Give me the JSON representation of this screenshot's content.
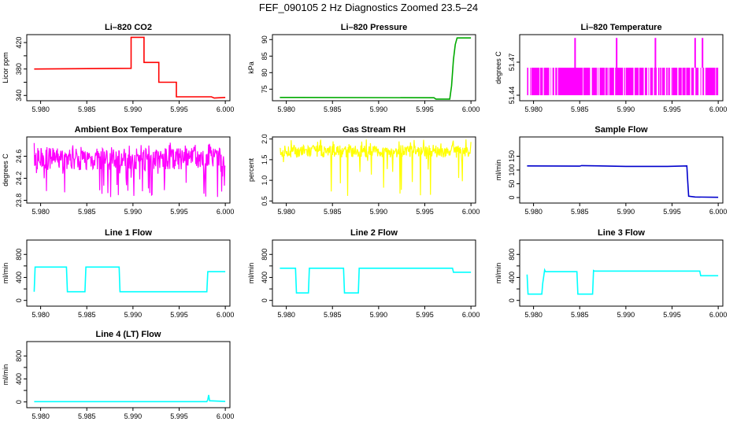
{
  "title": "FEF_090105  2 Hz Diagnostics Zoomed 23.5–24",
  "chart_data": [
    {
      "type": "line",
      "title": "Li–820 CO2",
      "ylabel": "Licor ppm",
      "xlim": [
        5.9785,
        6.0005
      ],
      "ylim": [
        332,
        432
      ],
      "yticks": [
        340,
        360,
        380,
        400,
        420
      ],
      "ytick_labels": [
        "340",
        "",
        "380",
        "",
        "420"
      ],
      "xticks": [
        5.98,
        5.985,
        5.99,
        5.995,
        6.0
      ],
      "xtick_labels": [
        "5.980",
        "5.985",
        "5.990",
        "5.995",
        "6.000"
      ],
      "color": "#ff0000",
      "series": [
        {
          "values": [
            [
              5.9793,
              380
            ],
            [
              5.9898,
              381
            ],
            [
              5.9898,
              428
            ],
            [
              5.9912,
              428
            ],
            [
              5.9912,
              390
            ],
            [
              5.9928,
              390
            ],
            [
              5.9928,
              360
            ],
            [
              5.9947,
              360
            ],
            [
              5.9947,
              338
            ],
            [
              5.9985,
              338
            ],
            [
              5.9988,
              336
            ],
            [
              6.0,
              337
            ]
          ]
        }
      ]
    },
    {
      "type": "line",
      "title": "Li–820 Pressure",
      "ylabel": "kPa",
      "xlim": [
        5.9785,
        6.0005
      ],
      "ylim": [
        71.5,
        91.5
      ],
      "yticks": [
        75,
        80,
        85,
        90
      ],
      "ytick_labels": [
        "75",
        "80",
        "85",
        "90"
      ],
      "xticks": [
        5.98,
        5.985,
        5.99,
        5.995,
        6.0
      ],
      "xtick_labels": [
        "5.980",
        "5.985",
        "5.990",
        "5.995",
        "6.000"
      ],
      "color": "#00aa00",
      "series": [
        {
          "values": [
            [
              5.9793,
              72.5
            ],
            [
              5.996,
              72.4
            ],
            [
              5.9962,
              72.0
            ],
            [
              5.9977,
              72.0
            ],
            [
              5.9979,
              76.0
            ],
            [
              5.9981,
              84.0
            ],
            [
              5.9983,
              88.5
            ],
            [
              5.9985,
              90.5
            ],
            [
              6.0,
              90.5
            ]
          ]
        }
      ]
    },
    {
      "type": "line",
      "title": "Li–820 Temperature",
      "ylabel": "degrees C",
      "xlim": [
        5.9785,
        6.0005
      ],
      "ylim": [
        51.435,
        51.495
      ],
      "yticks": [
        51.44,
        51.47
      ],
      "ytick_labels": [
        "51.44",
        "51.47"
      ],
      "xticks": [
        5.98,
        5.985,
        5.99,
        5.995,
        6.0
      ],
      "xtick_labels": [
        "5.980",
        "5.985",
        "5.990",
        "5.995",
        "6.000"
      ],
      "color": "#ff00ff",
      "series": [
        {
          "band": [
            51.44,
            51.465
          ],
          "spikes": [
            5.9845,
            5.989,
            5.9932,
            5.9975,
            5.9983
          ],
          "spike_top": 51.492
        }
      ]
    },
    {
      "type": "line",
      "title": "Ambient Box Temperature",
      "ylabel": "degrees C",
      "xlim": [
        5.9785,
        6.0005
      ],
      "ylim": [
        23.75,
        24.95
      ],
      "yticks": [
        23.8,
        24.2,
        24.6
      ],
      "ytick_labels": [
        "23.8",
        "24.2",
        "24.6"
      ],
      "xticks": [
        5.98,
        5.985,
        5.99,
        5.995,
        6.0
      ],
      "xtick_labels": [
        "5.980",
        "5.985",
        "5.990",
        "5.995",
        "6.000"
      ],
      "color": "#ff00ff",
      "series": [
        {
          "band": [
            24.35,
            24.75
          ],
          "low": 23.85,
          "high": 24.85
        }
      ]
    },
    {
      "type": "line",
      "title": "Gas Stream RH",
      "ylabel": "percent",
      "xlim": [
        5.9785,
        6.0005
      ],
      "ylim": [
        0.45,
        2.05
      ],
      "yticks": [
        0.5,
        1.0,
        1.5,
        2.0
      ],
      "ytick_labels": [
        "0.5",
        "1.0",
        "1.5",
        "2.0"
      ],
      "xticks": [
        5.98,
        5.985,
        5.99,
        5.995,
        6.0
      ],
      "xtick_labels": [
        "5.980",
        "5.985",
        "5.990",
        "5.995",
        "6.000"
      ],
      "color": "#ffff00",
      "series": [
        {
          "band": [
            1.55,
            1.85
          ],
          "low": 0.55,
          "high": 2.0
        }
      ]
    },
    {
      "type": "line",
      "title": "Sample Flow",
      "ylabel": "ml/min",
      "xlim": [
        5.9785,
        6.0005
      ],
      "ylim": [
        -20,
        220
      ],
      "yticks": [
        0,
        50,
        100,
        150
      ],
      "ytick_labels": [
        "0",
        "50",
        "100",
        "150"
      ],
      "xticks": [
        5.98,
        5.985,
        5.99,
        5.995,
        6.0
      ],
      "xtick_labels": [
        "5.980",
        "5.985",
        "5.990",
        "5.995",
        "6.000"
      ],
      "color": "#0000cc",
      "series": [
        {
          "values": [
            [
              5.9793,
              115
            ],
            [
              5.985,
              114
            ],
            [
              5.9852,
              116
            ],
            [
              5.99,
              113
            ],
            [
              5.9945,
              113
            ],
            [
              5.9966,
              115
            ],
            [
              5.9967,
              60
            ],
            [
              5.9968,
              5
            ],
            [
              5.9975,
              2
            ],
            [
              6.0,
              1
            ]
          ]
        }
      ]
    },
    {
      "type": "line",
      "title": "Line 1 Flow",
      "ylabel": "ml/min",
      "xlim": [
        5.9785,
        6.0005
      ],
      "ylim": [
        -100,
        1050
      ],
      "yticks": [
        0,
        200,
        400,
        600,
        800
      ],
      "ytick_labels": [
        "0",
        "",
        "400",
        "",
        "800"
      ],
      "xticks": [
        5.98,
        5.985,
        5.99,
        5.995,
        6.0
      ],
      "xtick_labels": [
        "5.980",
        "5.985",
        "5.990",
        "5.995",
        "6.000"
      ],
      "color": "#00ffff",
      "series": [
        {
          "values": [
            [
              5.9793,
              150
            ],
            [
              5.9794,
              580
            ],
            [
              5.9828,
              580
            ],
            [
              5.9829,
              150
            ],
            [
              5.9848,
              150
            ],
            [
              5.9849,
              580
            ],
            [
              5.9885,
              580
            ],
            [
              5.9886,
              150
            ],
            [
              5.998,
              150
            ],
            [
              5.9981,
              500
            ],
            [
              6.0,
              500
            ]
          ]
        }
      ]
    },
    {
      "type": "line",
      "title": "Line 2 Flow",
      "ylabel": "ml/min",
      "xlim": [
        5.9785,
        6.0005
      ],
      "ylim": [
        -100,
        1050
      ],
      "yticks": [
        0,
        200,
        400,
        600,
        800
      ],
      "ytick_labels": [
        "0",
        "",
        "400",
        "",
        "800"
      ],
      "xticks": [
        5.98,
        5.985,
        5.99,
        5.995,
        6.0
      ],
      "xtick_labels": [
        "5.980",
        "5.985",
        "5.990",
        "5.995",
        "6.000"
      ],
      "color": "#00ffff",
      "series": [
        {
          "values": [
            [
              5.9793,
              560
            ],
            [
              5.981,
              560
            ],
            [
              5.9811,
              130
            ],
            [
              5.9824,
              130
            ],
            [
              5.9825,
              560
            ],
            [
              5.9862,
              560
            ],
            [
              5.9863,
              130
            ],
            [
              5.9878,
              130
            ],
            [
              5.9879,
              560
            ],
            [
              5.998,
              560
            ],
            [
              5.9981,
              490
            ],
            [
              6.0,
              490
            ]
          ]
        }
      ]
    },
    {
      "type": "line",
      "title": "Line 3 Flow",
      "ylabel": "ml/min",
      "xlim": [
        5.9785,
        6.0005
      ],
      "ylim": [
        -100,
        1050
      ],
      "yticks": [
        0,
        200,
        400,
        600,
        800
      ],
      "ytick_labels": [
        "0",
        "",
        "400",
        "",
        "800"
      ],
      "xticks": [
        5.98,
        5.985,
        5.99,
        5.995,
        6.0
      ],
      "xtick_labels": [
        "5.980",
        "5.985",
        "5.990",
        "5.995",
        "6.000"
      ],
      "color": "#00ffff",
      "series": [
        {
          "values": [
            [
              5.9793,
              450
            ],
            [
              5.9794,
              110
            ],
            [
              5.9809,
              110
            ],
            [
              5.981,
              300
            ],
            [
              5.9812,
              530
            ],
            [
              5.9813,
              500
            ],
            [
              5.9847,
              500
            ],
            [
              5.9848,
              110
            ],
            [
              5.9864,
              110
            ],
            [
              5.9865,
              520
            ],
            [
              5.9866,
              510
            ],
            [
              5.998,
              510
            ],
            [
              5.9981,
              430
            ],
            [
              6.0,
              430
            ]
          ]
        }
      ]
    },
    {
      "type": "line",
      "title": "Line 4 (LT) Flow",
      "ylabel": "ml/min",
      "xlim": [
        5.9785,
        6.0005
      ],
      "ylim": [
        -100,
        1050
      ],
      "yticks": [
        0,
        200,
        400,
        600,
        800
      ],
      "ytick_labels": [
        "0",
        "",
        "400",
        "",
        "800"
      ],
      "xticks": [
        5.98,
        5.985,
        5.99,
        5.995,
        6.0
      ],
      "xtick_labels": [
        "5.980",
        "5.985",
        "5.990",
        "5.995",
        "6.000"
      ],
      "color": "#00ffff",
      "series": [
        {
          "values": [
            [
              5.9793,
              5
            ],
            [
              5.998,
              5
            ],
            [
              5.9981,
              40
            ],
            [
              5.9982,
              120
            ],
            [
              5.9983,
              20
            ],
            [
              6.0,
              8
            ]
          ]
        }
      ]
    }
  ]
}
